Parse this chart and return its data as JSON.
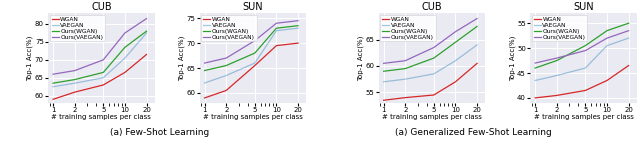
{
  "x": [
    1,
    2,
    5,
    10,
    20
  ],
  "subplot1": {
    "title": "CUB",
    "ylabel": "Top-1 Acc(%)",
    "xlabel": "# training samples per class",
    "ylim": [
      58,
      83
    ],
    "yticks": [
      60,
      65,
      70,
      75,
      80
    ],
    "WGAN": [
      59.0,
      61.0,
      63.0,
      66.5,
      71.5
    ],
    "VAEGAN": [
      62.5,
      63.5,
      65.0,
      70.5,
      77.5
    ],
    "OursWGAN": [
      63.5,
      64.5,
      66.5,
      73.5,
      78.0
    ],
    "OursVAEGAN": [
      66.0,
      67.0,
      70.0,
      77.5,
      81.5
    ]
  },
  "subplot2": {
    "title": "SUN",
    "ylabel": "Top-1 Acc(%)",
    "xlabel": "# training samples per class",
    "ylim": [
      58,
      76
    ],
    "yticks": [
      60,
      65,
      70,
      75
    ],
    "WGAN": [
      59.0,
      60.5,
      65.5,
      69.5,
      70.0
    ],
    "VAEGAN": [
      62.0,
      63.5,
      66.0,
      72.5,
      73.0
    ],
    "OursWGAN": [
      64.5,
      65.5,
      68.0,
      73.0,
      73.5
    ],
    "OursVAEGAN": [
      66.0,
      67.0,
      70.5,
      74.0,
      74.5
    ]
  },
  "subplot3": {
    "title": "CUB",
    "ylabel": "Top-1 Acc(%)",
    "xlabel": "# training samples per class",
    "ylim": [
      53,
      70
    ],
    "yticks": [
      55,
      60,
      65
    ],
    "WGAN": [
      53.5,
      54.0,
      54.5,
      57.0,
      60.5
    ],
    "VAEGAN": [
      57.0,
      57.5,
      58.5,
      61.0,
      64.0
    ],
    "OursWGAN": [
      59.0,
      59.5,
      61.5,
      64.5,
      67.5
    ],
    "OursVAEGAN": [
      60.5,
      61.0,
      63.5,
      66.5,
      69.0
    ]
  },
  "subplot4": {
    "title": "SUN",
    "ylabel": "Top-1 Acc(%)",
    "xlabel": "# training samples per class",
    "ylim": [
      39,
      57
    ],
    "yticks": [
      40,
      45,
      50,
      55
    ],
    "WGAN": [
      40.0,
      40.5,
      41.5,
      43.5,
      46.5
    ],
    "VAEGAN": [
      43.5,
      44.5,
      46.0,
      50.5,
      52.0
    ],
    "OursWGAN": [
      46.0,
      47.5,
      50.5,
      53.5,
      55.0
    ],
    "OursVAEGAN": [
      47.0,
      48.0,
      49.5,
      52.0,
      53.5
    ]
  },
  "colors": {
    "WGAN": "#d62728",
    "VAEGAN": "#1f77b4",
    "OursWGAN": "#2ca02c",
    "OursVAEGAN": "#9467bd"
  },
  "vaegan_alpha": 0.4,
  "legend_labels": [
    "WGAN",
    "VAEGAN",
    "Ours(WGAN)",
    "Ours(VAEGAN)"
  ],
  "caption1": "(a) Few-Shot Learning",
  "caption2": "(a) Generalized Few-Shot Learning",
  "bg_color": "#eaeaf2"
}
